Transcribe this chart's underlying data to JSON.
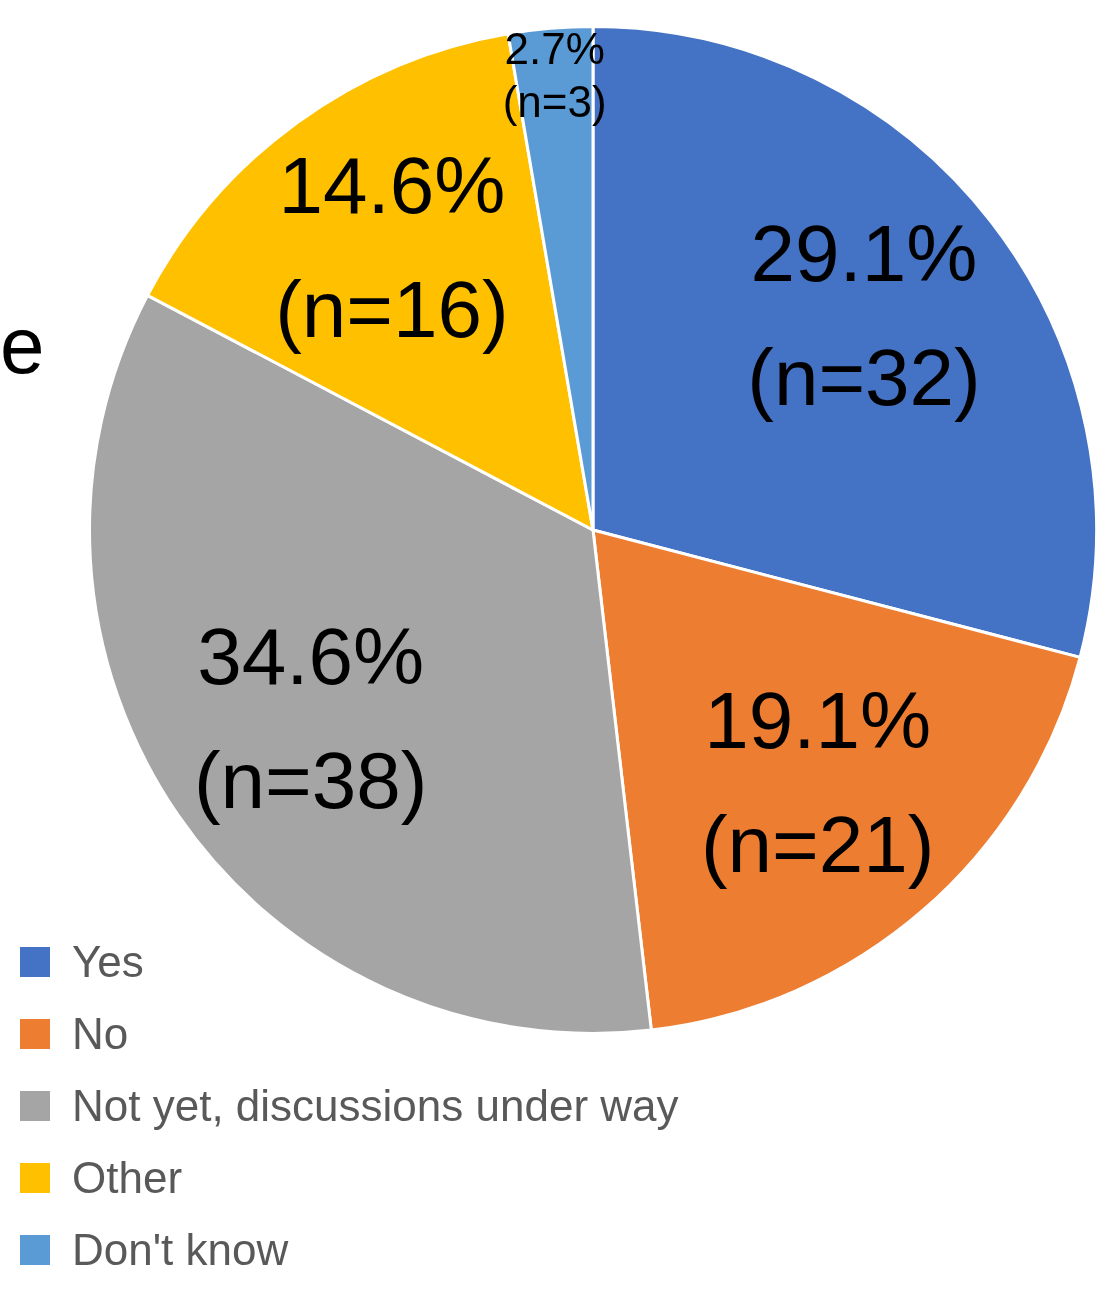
{
  "chart_data": {
    "type": "pie",
    "categories": [
      "Yes",
      "No",
      "Not yet, discussions under way",
      "Other",
      "Don't know"
    ],
    "values": [
      29.1,
      19.1,
      34.6,
      14.6,
      2.7
    ],
    "colors": [
      "#4472c4",
      "#ed7d31",
      "#a5a5a5",
      "#ffc000",
      "#5b9bd5"
    ],
    "value_labels": [
      "29.1%\n(n=32)",
      "19.1%\n(n=21)",
      "34.6%\n(n=38)",
      "14.6%\n(n=16)",
      "2.7%\n(n=3)"
    ],
    "legend": "bottom left",
    "annotations": [
      "e"
    ]
  }
}
